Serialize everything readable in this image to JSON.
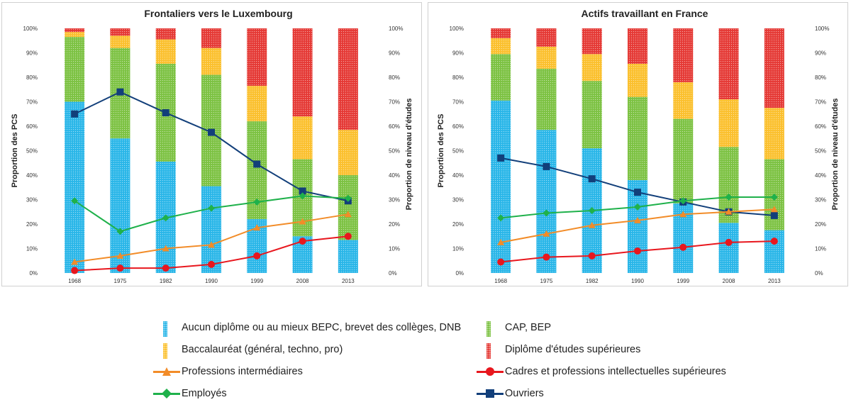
{
  "colors": {
    "aucun": "#29b6e8",
    "cap": "#7cc242",
    "bac": "#fbc02d",
    "sup": "#e53935",
    "prof_inter": "#f28c28",
    "cadres": "#e8171e",
    "employes": "#1fb14b",
    "ouvriers": "#123f7a"
  },
  "legend": {
    "aucun": "Aucun diplôme ou au mieux BEPC, brevet des collèges, DNB",
    "cap": "CAP, BEP",
    "bac": "Baccalauréat (général, techno, pro)",
    "sup": "Diplôme d'études supérieures",
    "prof_inter": "Professions intermédiaires",
    "cadres": "Cadres et professions intellectuelles supérieures",
    "employes": "Employés",
    "ouvriers": "Ouvriers"
  },
  "chart_data": [
    {
      "type": "bar",
      "title": "Frontaliers vers le Luxembourg",
      "ylabel": "Proportion des PCS",
      "y2label": "Proportion de niveau d'études",
      "ylim": [
        0,
        100
      ],
      "yticks": [
        "0%",
        "10%",
        "20%",
        "30%",
        "40%",
        "50%",
        "60%",
        "70%",
        "80%",
        "90%",
        "100%"
      ],
      "categories": [
        "1968",
        "1975",
        "1982",
        "1990",
        "1999",
        "2008",
        "2013"
      ],
      "stacked_series": [
        {
          "key": "aucun",
          "values": [
            70,
            55,
            45.5,
            35.5,
            22,
            15,
            13.5
          ]
        },
        {
          "key": "cap",
          "values": [
            26.5,
            37,
            40,
            45.5,
            40,
            31.5,
            26.5
          ]
        },
        {
          "key": "bac",
          "values": [
            2,
            5,
            10,
            11,
            14.5,
            17.5,
            18.5
          ]
        },
        {
          "key": "sup",
          "values": [
            1.5,
            3,
            4.5,
            8,
            23.5,
            36,
            41.5
          ]
        }
      ],
      "line_series": [
        {
          "key": "ouvriers",
          "marker": "square",
          "values": [
            65,
            74,
            65.5,
            57.5,
            44.5,
            33.5,
            29.5
          ]
        },
        {
          "key": "employes",
          "marker": "diamond",
          "values": [
            29.5,
            17,
            22.5,
            26.5,
            29,
            31.5,
            30.5
          ]
        },
        {
          "key": "prof_inter",
          "marker": "triangle",
          "values": [
            4.5,
            7,
            10,
            11.5,
            18.5,
            21,
            24
          ]
        },
        {
          "key": "cadres",
          "marker": "circle",
          "values": [
            1,
            2,
            2,
            3.5,
            7,
            13,
            15
          ]
        }
      ]
    },
    {
      "type": "bar",
      "title": "Actifs travaillant en France",
      "ylabel": "Proportion des PCS",
      "y2label": "Proportion de niveau d'études",
      "ylim": [
        0,
        100
      ],
      "yticks": [
        "0%",
        "10%",
        "20%",
        "30%",
        "40%",
        "50%",
        "60%",
        "70%",
        "80%",
        "90%",
        "100%"
      ],
      "categories": [
        "1968",
        "1975",
        "1982",
        "1990",
        "1999",
        "2008",
        "2013"
      ],
      "stacked_series": [
        {
          "key": "aucun",
          "values": [
            70.5,
            58.5,
            51,
            38,
            28.5,
            20.5,
            17.5
          ]
        },
        {
          "key": "cap",
          "values": [
            19,
            25,
            27.5,
            34,
            34.5,
            31,
            29
          ]
        },
        {
          "key": "bac",
          "values": [
            6.5,
            9,
            11,
            13.5,
            15,
            19.5,
            21
          ]
        },
        {
          "key": "sup",
          "values": [
            4,
            7.5,
            10.5,
            14.5,
            22,
            29,
            32.5
          ]
        }
      ],
      "line_series": [
        {
          "key": "ouvriers",
          "marker": "square",
          "values": [
            47,
            43.5,
            38.5,
            33,
            29,
            25,
            23.5
          ]
        },
        {
          "key": "employes",
          "marker": "diamond",
          "values": [
            22.5,
            24.5,
            25.5,
            27,
            29.5,
            31,
            31
          ]
        },
        {
          "key": "prof_inter",
          "marker": "triangle",
          "values": [
            12.5,
            16,
            19.5,
            21.5,
            24,
            25,
            26
          ]
        },
        {
          "key": "cadres",
          "marker": "circle",
          "values": [
            4.5,
            6.5,
            7,
            9,
            10.5,
            12.5,
            13
          ]
        }
      ]
    }
  ]
}
